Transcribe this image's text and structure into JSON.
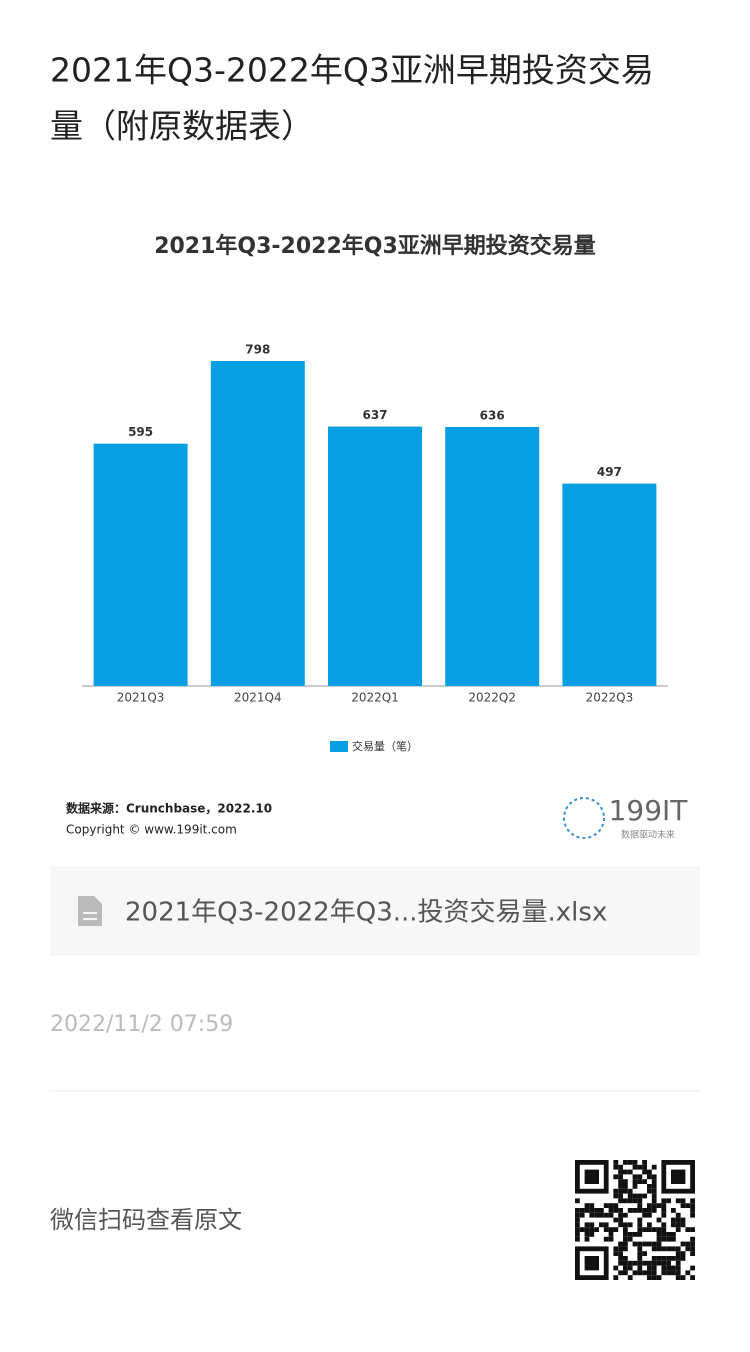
{
  "header": {
    "title_line1": "2021年Q3-2022年Q3亚洲早期投资交易",
    "title_line2": "量（附原数据表）"
  },
  "chart_data": {
    "type": "bar",
    "title": "2021年Q3-2022年Q3亚洲早期投资交易量",
    "categories": [
      "2021Q3",
      "2021Q4",
      "2022Q1",
      "2022Q2",
      "2022Q3"
    ],
    "series": [
      {
        "name": "交易量（笔）",
        "color": "#079fe4",
        "values": [
          595,
          798,
          637,
          636,
          497
        ]
      }
    ],
    "legend": "bottom"
  },
  "source": {
    "line1": "数据来源：Crunchbase，2022.10",
    "line2": "Copyright © www.199it.com",
    "logo": "199IT",
    "logo_sub": "数据驱动未来"
  },
  "attachment": {
    "name": "2021年Q3-2022年Q3...投资交易量.xlsx"
  },
  "date": "2022/11/2 07:59",
  "footer": {
    "text": "微信扫码查看原文"
  }
}
